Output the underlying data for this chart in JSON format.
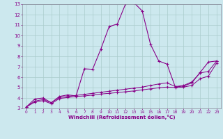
{
  "xlabel": "Windchill (Refroidissement éolien,°C)",
  "bg_color": "#cce8ee",
  "line_color": "#880088",
  "xlim": [
    -0.5,
    23.5
  ],
  "ylim": [
    3,
    13
  ],
  "xticks": [
    0,
    1,
    2,
    3,
    4,
    5,
    6,
    7,
    8,
    9,
    10,
    11,
    12,
    13,
    14,
    15,
    16,
    17,
    18,
    19,
    20,
    21,
    22,
    23
  ],
  "yticks": [
    3,
    4,
    5,
    6,
    7,
    8,
    9,
    10,
    11,
    12,
    13
  ],
  "line1_x": [
    0,
    1,
    2,
    3,
    4,
    5,
    6,
    7,
    8,
    9,
    10,
    11,
    12,
    13,
    14,
    15,
    16,
    17,
    18,
    19,
    20,
    21,
    22,
    23
  ],
  "line1_y": [
    3.15,
    3.9,
    4.0,
    3.55,
    4.15,
    4.3,
    4.2,
    6.8,
    6.75,
    8.7,
    10.85,
    11.1,
    13.05,
    13.15,
    12.35,
    9.15,
    7.55,
    7.25,
    5.05,
    5.15,
    5.45,
    6.45,
    7.45,
    7.55
  ],
  "line2_x": [
    0,
    1,
    2,
    3,
    4,
    5,
    6,
    7,
    8,
    9,
    10,
    11,
    12,
    13,
    14,
    15,
    16,
    17,
    18,
    19,
    20,
    21,
    22,
    23
  ],
  "line2_y": [
    3.15,
    3.7,
    3.85,
    3.55,
    4.05,
    4.15,
    4.25,
    4.35,
    4.45,
    4.55,
    4.65,
    4.75,
    4.85,
    4.95,
    5.05,
    5.2,
    5.35,
    5.45,
    5.1,
    5.2,
    5.55,
    6.4,
    6.55,
    7.55
  ],
  "line3_x": [
    0,
    1,
    2,
    3,
    4,
    5,
    6,
    7,
    8,
    9,
    10,
    11,
    12,
    13,
    14,
    15,
    16,
    17,
    18,
    19,
    20,
    21,
    22,
    23
  ],
  "line3_y": [
    3.15,
    3.6,
    3.75,
    3.45,
    3.95,
    4.05,
    4.15,
    4.2,
    4.28,
    4.38,
    4.45,
    4.52,
    4.6,
    4.68,
    4.78,
    4.88,
    4.98,
    5.05,
    5.0,
    5.05,
    5.2,
    5.85,
    6.1,
    7.35
  ]
}
